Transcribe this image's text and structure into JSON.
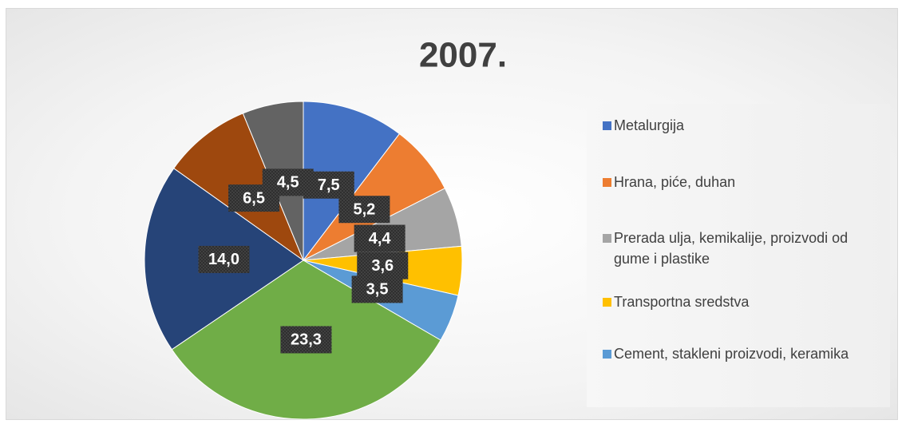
{
  "chart_data": {
    "type": "pie",
    "title": "2007.",
    "categories": [
      "Metalurgija",
      "Hrana, piće, duhan",
      "Prerada ulja, kemikalije, proizvodi od gume i plastike",
      "Transportna sredstva",
      "Cement, stakleni proizvodi, keramika",
      null,
      null,
      null,
      null
    ],
    "values": [
      7.5,
      5.2,
      4.4,
      3.6,
      3.5,
      23.3,
      14.0,
      6.5,
      4.5
    ],
    "value_labels": [
      "7,5",
      "5,2",
      "4,4",
      "3,6",
      "3,5",
      "23,3",
      "14,0",
      "6,5",
      "4,5"
    ],
    "colors": [
      "#4472c4",
      "#ed7d31",
      "#a5a5a5",
      "#ffc000",
      "#5b9bd5",
      "#70ad47",
      "#264478",
      "#9e480e",
      "#636363"
    ]
  }
}
